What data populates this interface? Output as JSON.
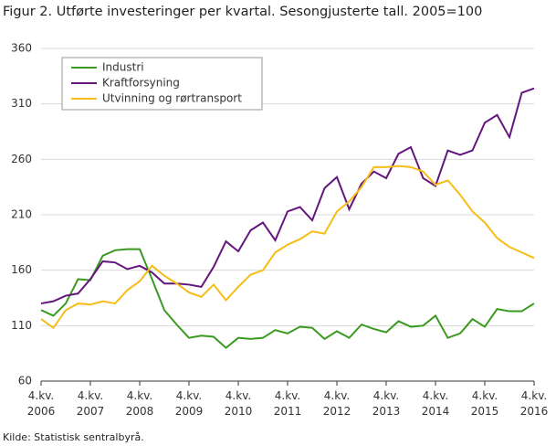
{
  "chart_data": {
    "type": "line",
    "title": "Figur 2. Utførte investeringer per kvartal. Sesongjusterte tall. 2005=100",
    "source": "Kilde: Statistisk sentralbyrå.",
    "categories": [
      "4.kv.\n2006",
      null,
      null,
      null,
      "4.kv.\n2007",
      null,
      null,
      null,
      "4.kv.\n2008",
      null,
      null,
      null,
      "4.kv.\n2009",
      null,
      null,
      null,
      "4.kv.\n2010",
      null,
      null,
      null,
      "4.kv.\n2011",
      null,
      null,
      null,
      "4.kv.\n2012",
      null,
      null,
      null,
      "4.kv.\n2013",
      null,
      null,
      null,
      "4.kv.\n2014",
      null,
      null,
      null,
      "4.kv.\n2015",
      null,
      null,
      null,
      "4.kv.\n2016"
    ],
    "series": [
      {
        "name": "Industri",
        "color": "#3a9a1f",
        "values": [
          124,
          119,
          130,
          152,
          151,
          173,
          178,
          179,
          179,
          152,
          124,
          111,
          99,
          101,
          100,
          90,
          99,
          98,
          99,
          106,
          103,
          109,
          108,
          98,
          105,
          99,
          111,
          107,
          104,
          114,
          109,
          110,
          119,
          99,
          103,
          116,
          109,
          125,
          123,
          123,
          130
        ]
      },
      {
        "name": "Kraftforsyning",
        "color": "#64167d",
        "values": [
          130,
          132,
          137,
          139,
          152,
          168,
          167,
          161,
          164,
          158,
          148,
          148,
          147,
          145,
          163,
          186,
          177,
          196,
          203,
          187,
          213,
          217,
          205,
          234,
          244,
          215,
          238,
          249,
          243,
          265,
          271,
          243,
          236,
          268,
          264,
          268,
          293,
          300,
          280,
          320,
          324
        ]
      },
      {
        "name": "Utvinning og rørtransport",
        "color": "#f6bd16",
        "values": [
          116,
          108,
          124,
          130,
          129,
          132,
          130,
          142,
          150,
          164,
          155,
          148,
          140,
          136,
          147,
          133,
          145,
          156,
          160,
          176,
          183,
          188,
          195,
          193,
          213,
          222,
          235,
          253,
          253,
          254,
          253,
          249,
          237,
          241,
          228,
          213,
          203,
          189,
          181,
          176,
          171
        ]
      }
    ],
    "ylim": [
      60,
      360
    ],
    "yticks": [
      60,
      110,
      160,
      210,
      260,
      310,
      360
    ],
    "grid": true
  }
}
